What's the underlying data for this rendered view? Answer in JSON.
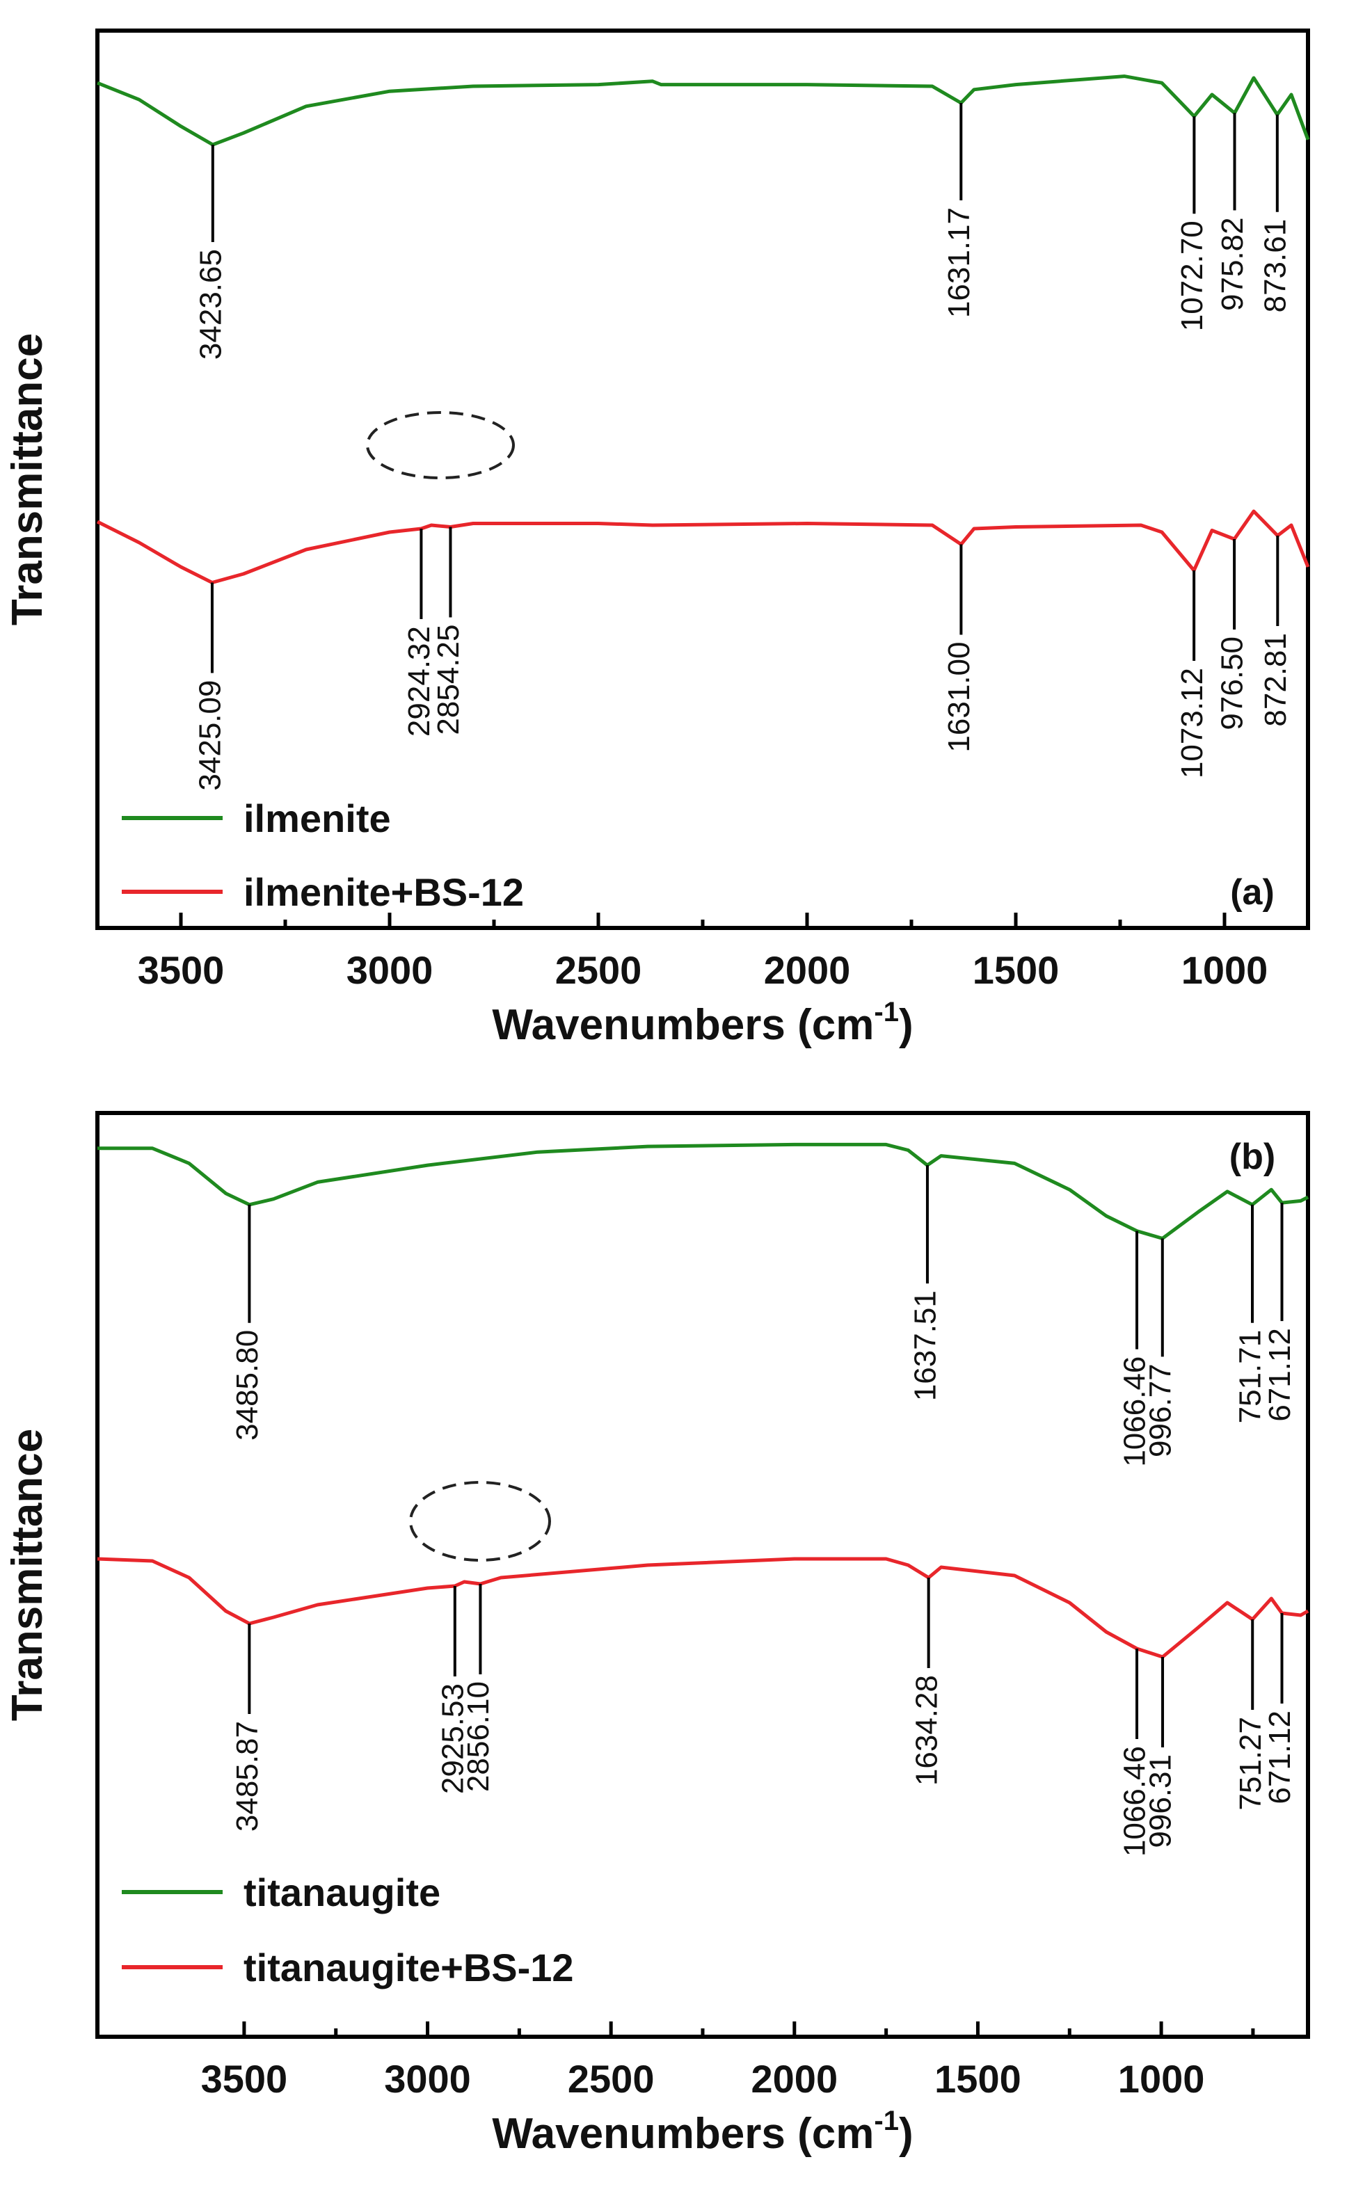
{
  "chart_data": [
    {
      "type": "line",
      "panel_label": "(a)",
      "xlabel": "Wavenumbers (cm",
      "xlabel_sup": "-1",
      "xlabel_close": ")",
      "ylabel": "Transmittance",
      "xlim": [
        3700,
        800
      ],
      "x_ticks": [
        3500,
        3000,
        2500,
        2000,
        1500,
        1000
      ],
      "legend_position": "bottom-left",
      "series": [
        {
          "name": "ilmenite",
          "color": "#1f8a1f",
          "points": [
            [
              3700,
              0.08
            ],
            [
              3600,
              0.18
            ],
            [
              3500,
              0.34
            ],
            [
              3423.65,
              0.45
            ],
            [
              3350,
              0.38
            ],
            [
              3200,
              0.22
            ],
            [
              3000,
              0.13
            ],
            [
              2800,
              0.1
            ],
            [
              2500,
              0.09
            ],
            [
              2370,
              0.07
            ],
            [
              2350,
              0.09
            ],
            [
              2000,
              0.09
            ],
            [
              1700,
              0.1
            ],
            [
              1631.17,
              0.2
            ],
            [
              1600,
              0.12
            ],
            [
              1500,
              0.09
            ],
            [
              1240,
              0.04
            ],
            [
              1150,
              0.08
            ],
            [
              1072.7,
              0.28
            ],
            [
              1030,
              0.15
            ],
            [
              975.82,
              0.26
            ],
            [
              930,
              0.05
            ],
            [
              873.61,
              0.27
            ],
            [
              840,
              0.15
            ],
            [
              800,
              0.42
            ]
          ],
          "peaks": [
            3423.65,
            1631.17,
            1072.7,
            975.82,
            873.61
          ],
          "peak_labels": [
            "3423.65",
            "1631.17",
            "1072.70",
            "975.82",
            "873.61"
          ]
        },
        {
          "name": "ilmenite+BS-12",
          "color": "#e8262b",
          "points": [
            [
              3700,
              0.6
            ],
            [
              3600,
              0.72
            ],
            [
              3500,
              0.86
            ],
            [
              3425.09,
              0.95
            ],
            [
              3350,
              0.9
            ],
            [
              3200,
              0.76
            ],
            [
              3000,
              0.66
            ],
            [
              2924.32,
              0.64
            ],
            [
              2900,
              0.62
            ],
            [
              2854.25,
              0.63
            ],
            [
              2800,
              0.61
            ],
            [
              2500,
              0.61
            ],
            [
              2370,
              0.62
            ],
            [
              2000,
              0.61
            ],
            [
              1700,
              0.62
            ],
            [
              1631.0,
              0.73
            ],
            [
              1600,
              0.64
            ],
            [
              1500,
              0.63
            ],
            [
              1200,
              0.62
            ],
            [
              1150,
              0.66
            ],
            [
              1073.12,
              0.88
            ],
            [
              1030,
              0.65
            ],
            [
              976.5,
              0.7
            ],
            [
              930,
              0.54
            ],
            [
              872.81,
              0.68
            ],
            [
              840,
              0.62
            ],
            [
              800,
              0.86
            ]
          ],
          "peaks": [
            3425.09,
            2924.32,
            2854.25,
            1631.0,
            1073.12,
            976.5,
            872.81
          ],
          "peak_labels": [
            "3425.09",
            "2924.32",
            "2854.25",
            "1631.00",
            "1073.12",
            "976.50",
            "872.81"
          ]
        }
      ]
    },
    {
      "type": "line",
      "panel_label": "(b)",
      "xlabel": "Wavenumbers (cm",
      "xlabel_sup": "-1",
      "xlabel_close": ")",
      "ylabel": "Transmittance",
      "xlim": [
        3900,
        600
      ],
      "x_ticks": [
        3500,
        3000,
        2500,
        2000,
        1500,
        1000
      ],
      "legend_position": "bottom-left",
      "series": [
        {
          "name": "titanaugite",
          "color": "#1f8a1f",
          "points": [
            [
              3900,
              0.04
            ],
            [
              3750,
              0.04
            ],
            [
              3650,
              0.12
            ],
            [
              3550,
              0.28
            ],
            [
              3485.8,
              0.34
            ],
            [
              3420,
              0.31
            ],
            [
              3300,
              0.22
            ],
            [
              3000,
              0.13
            ],
            [
              2700,
              0.06
            ],
            [
              2400,
              0.03
            ],
            [
              2000,
              0.02
            ],
            [
              1750,
              0.02
            ],
            [
              1690,
              0.05
            ],
            [
              1637.51,
              0.13
            ],
            [
              1600,
              0.08
            ],
            [
              1400,
              0.12
            ],
            [
              1250,
              0.26
            ],
            [
              1150,
              0.4
            ],
            [
              1066.46,
              0.48
            ],
            [
              996.77,
              0.52
            ],
            [
              900,
              0.38
            ],
            [
              820,
              0.27
            ],
            [
              751.71,
              0.34
            ],
            [
              700,
              0.26
            ],
            [
              671.12,
              0.33
            ],
            [
              620,
              0.32
            ],
            [
              600,
              0.3
            ]
          ],
          "peaks": [
            3485.8,
            1637.51,
            1066.46,
            996.77,
            751.71,
            671.12
          ],
          "peak_labels": [
            "3485.80",
            "1637.51",
            "1066.46",
            "996.77",
            "751.71",
            "671.12"
          ]
        },
        {
          "name": "titanaugite+BS-12",
          "color": "#e8262b",
          "points": [
            [
              3900,
              0.47
            ],
            [
              3750,
              0.48
            ],
            [
              3650,
              0.56
            ],
            [
              3550,
              0.72
            ],
            [
              3485.87,
              0.78
            ],
            [
              3420,
              0.75
            ],
            [
              3300,
              0.69
            ],
            [
              3000,
              0.61
            ],
            [
              2925.53,
              0.6
            ],
            [
              2900,
              0.58
            ],
            [
              2856.1,
              0.59
            ],
            [
              2800,
              0.56
            ],
            [
              2400,
              0.5
            ],
            [
              2000,
              0.47
            ],
            [
              1750,
              0.47
            ],
            [
              1690,
              0.5
            ],
            [
              1634.28,
              0.56
            ],
            [
              1600,
              0.51
            ],
            [
              1400,
              0.55
            ],
            [
              1250,
              0.68
            ],
            [
              1150,
              0.82
            ],
            [
              1066.46,
              0.9
            ],
            [
              996.31,
              0.94
            ],
            [
              900,
              0.8
            ],
            [
              820,
              0.68
            ],
            [
              751.27,
              0.76
            ],
            [
              700,
              0.66
            ],
            [
              671.12,
              0.73
            ],
            [
              620,
              0.74
            ],
            [
              600,
              0.72
            ]
          ],
          "peaks": [
            3485.87,
            2925.53,
            2856.1,
            1634.28,
            1066.46,
            996.31,
            751.27,
            671.12
          ],
          "peak_labels": [
            "3485.87",
            "2925.53",
            "2856.10",
            "1634.28",
            "1066.46",
            "996.31",
            "751.27",
            "671.12"
          ]
        }
      ]
    }
  ]
}
